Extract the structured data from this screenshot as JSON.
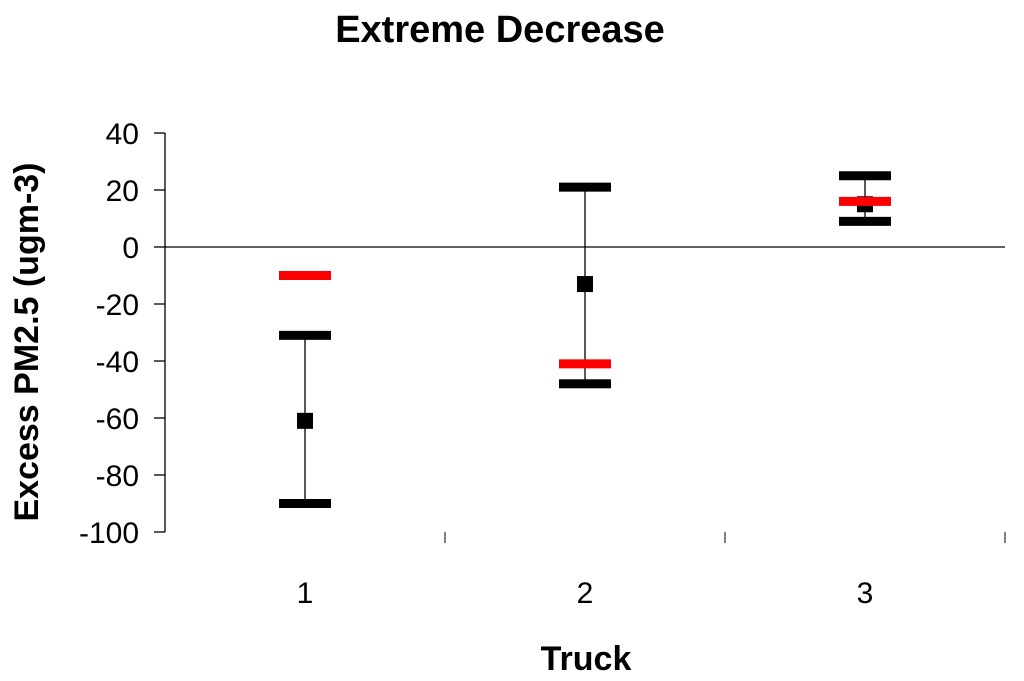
{
  "chart_data": {
    "type": "scatter",
    "title": "Extreme Decrease",
    "xlabel": "Truck",
    "ylabel": "Excess PM2.5 (ugm-3)",
    "categories": [
      "1",
      "2",
      "3"
    ],
    "ylim": [
      -100,
      40
    ],
    "yticks": [
      "40",
      "20",
      "0",
      "-20",
      "-40",
      "-60",
      "-80",
      "-100"
    ],
    "grid": false,
    "legend": "none",
    "series": [
      {
        "values": [
          -61,
          -13,
          15
        ],
        "error_low": [
          -90,
          -48,
          9
        ],
        "error_high": [
          -31,
          21,
          25
        ],
        "color": "#000000",
        "marker": "square"
      },
      {
        "values": [
          -10,
          -41,
          16
        ],
        "color": "#ff0000",
        "marker": "dash"
      }
    ]
  }
}
